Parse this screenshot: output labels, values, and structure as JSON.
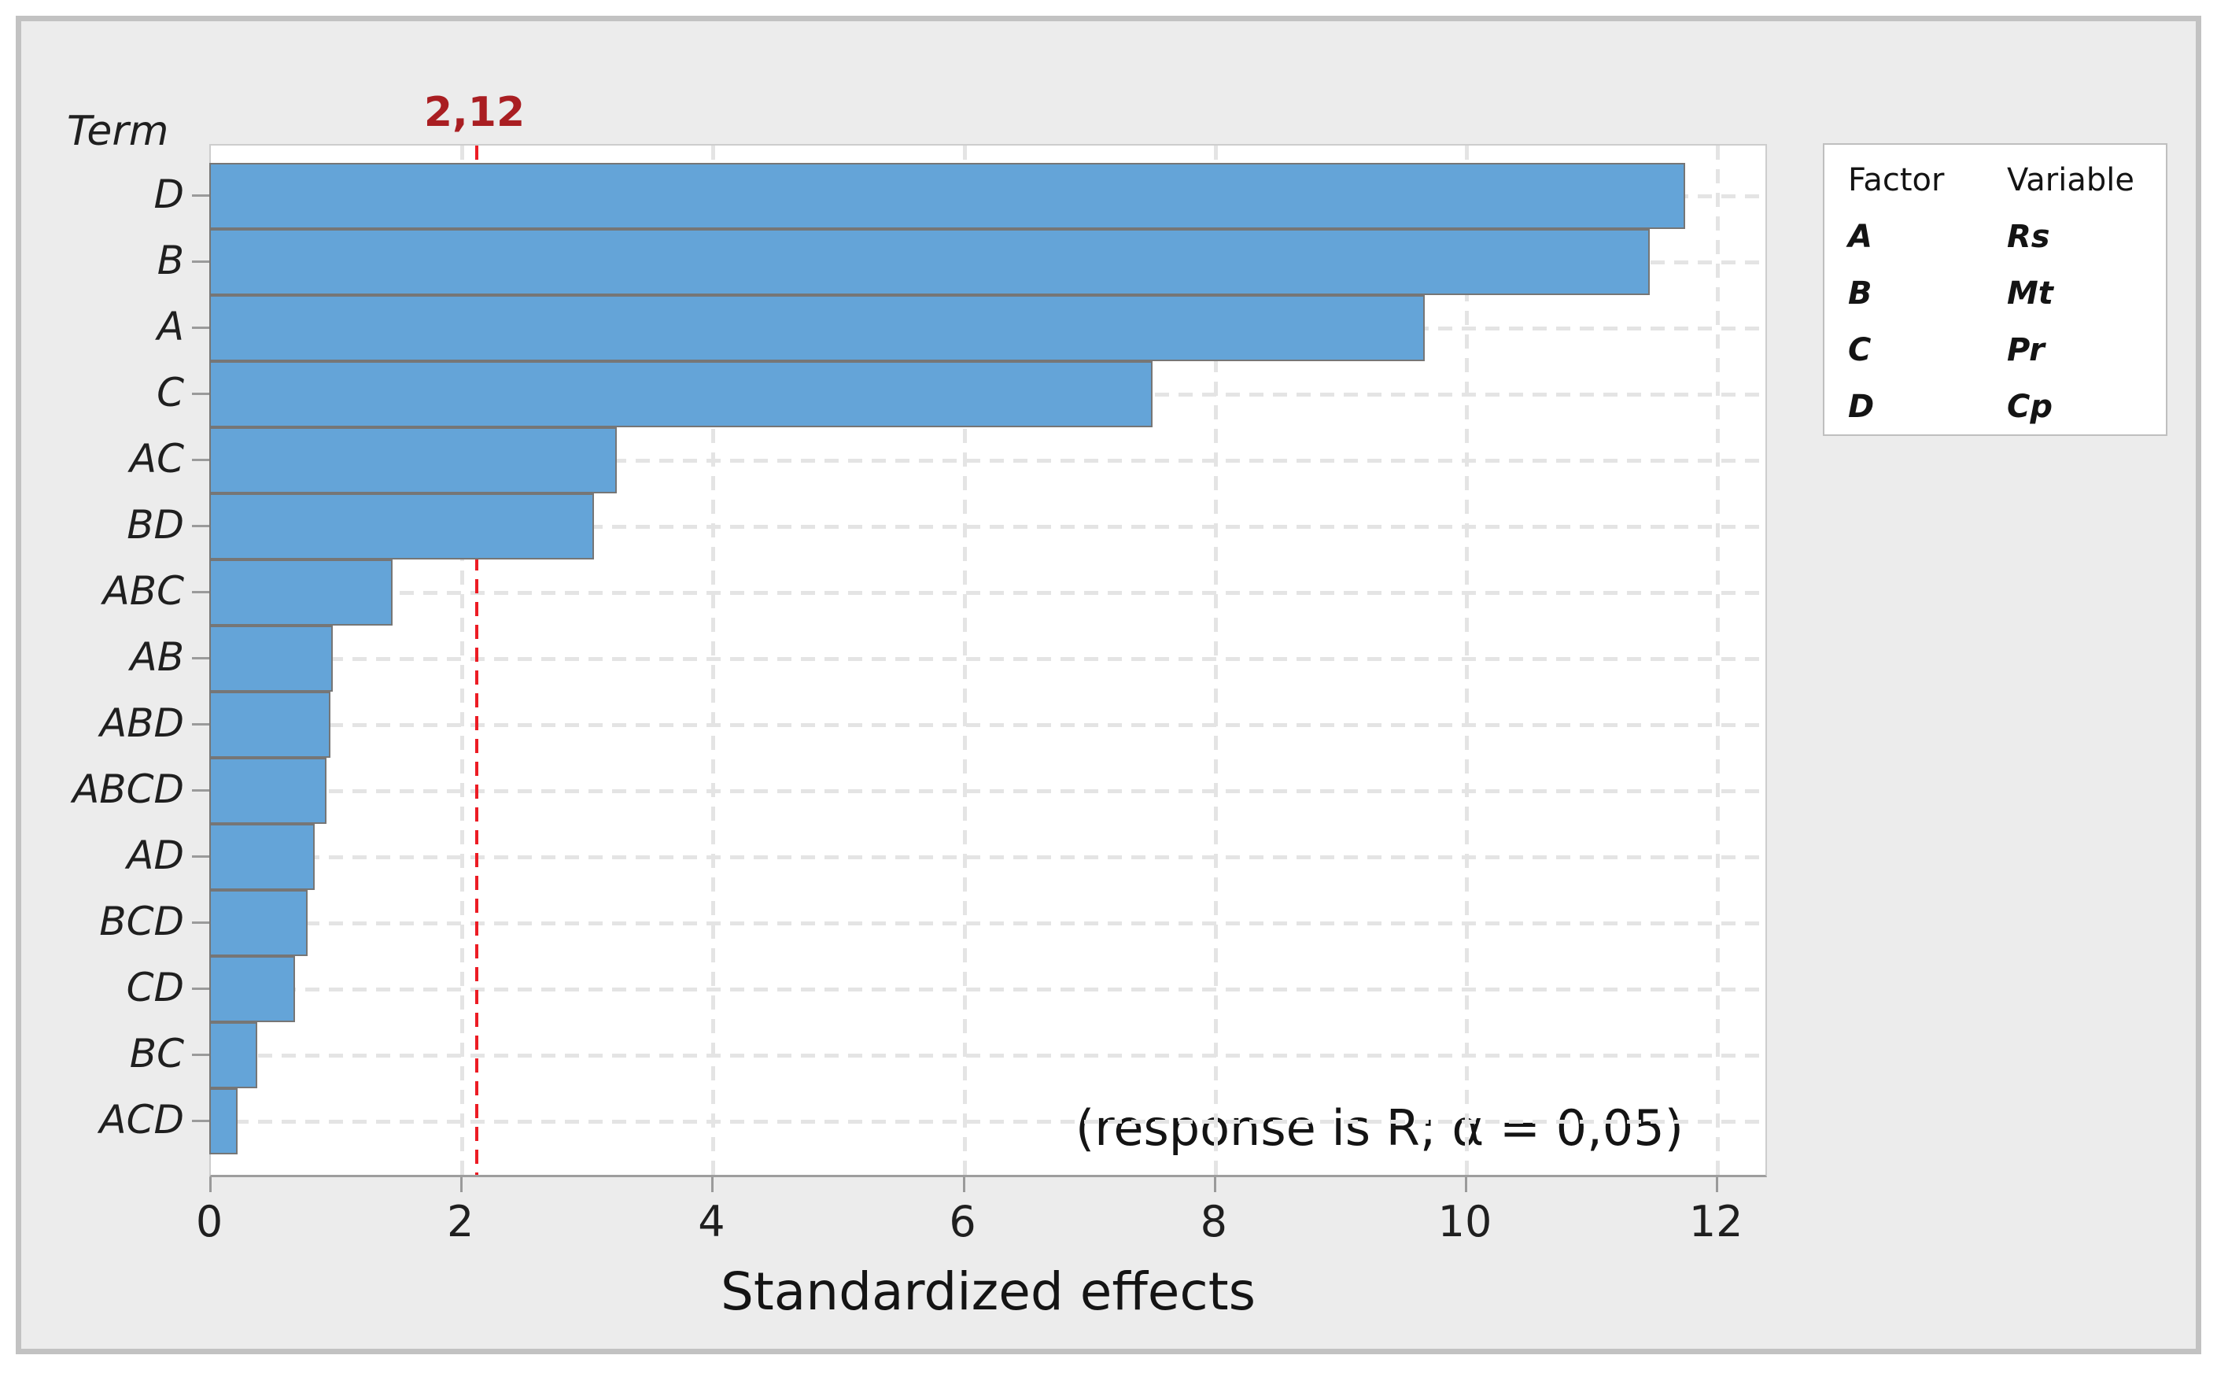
{
  "chart_data": {
    "type": "bar",
    "orientation": "horizontal",
    "title": "",
    "ylabel": "Term",
    "xlabel": "Standardized effects",
    "annotation": "(response is R; α = 0,05)",
    "categories": [
      "D",
      "B",
      "A",
      "C",
      "AC",
      "BD",
      "ABC",
      "AB",
      "ABD",
      "ABCD",
      "AD",
      "BCD",
      "CD",
      "BC",
      "ACD"
    ],
    "values": [
      11.74,
      11.46,
      9.67,
      7.5,
      3.23,
      3.05,
      1.45,
      0.97,
      0.95,
      0.92,
      0.83,
      0.77,
      0.67,
      0.37,
      0.21
    ],
    "x_ticks": [
      0,
      2,
      4,
      6,
      8,
      10,
      12
    ],
    "xlim": [
      0,
      12.4
    ],
    "grid": "both-dashed",
    "reference_line": {
      "value": 2.12,
      "label": "2,12"
    }
  },
  "legend": {
    "headers": [
      "Factor",
      "Variable"
    ],
    "rows": [
      {
        "factor": "A",
        "variable": "Rs"
      },
      {
        "factor": "B",
        "variable": "Mt"
      },
      {
        "factor": "C",
        "variable": "Pr"
      },
      {
        "factor": "D",
        "variable": "Cp"
      }
    ]
  },
  "colors": {
    "bar_fill": "#64A4D8",
    "bar_border": "#767676",
    "reference_line": "#EC1C24",
    "reference_label": "#A91E22",
    "plot_background": "#FFFFFF",
    "canvas_background": "#ECECEC",
    "gridline": "#E4E4E4",
    "frame_border": "#C2C2C2",
    "text": "#1F1F1F"
  }
}
